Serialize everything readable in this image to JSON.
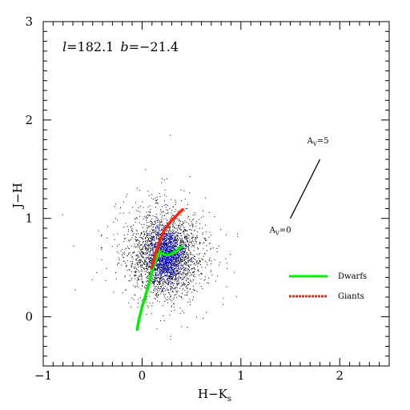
{
  "chart_data": {
    "type": "scatter",
    "title": "",
    "xlabel": "H−K",
    "xlabel_sub": "s",
    "ylabel": "J−H",
    "xlim": [
      -1.0,
      2.5
    ],
    "ylim": [
      -0.5,
      3.0
    ],
    "x_ticks": [
      "−1",
      "0",
      "1",
      "2"
    ],
    "y_ticks": [
      "0",
      "1",
      "2",
      "3"
    ],
    "x_tick_values": [
      -1,
      0,
      1,
      2
    ],
    "y_tick_values": [
      0,
      1,
      2,
      3
    ],
    "coords": {
      "l_italic": "l",
      "l_value": "=182.1",
      "b_italic": "b",
      "b_value": "=−21.4"
    },
    "reddening_vector": {
      "start": [
        1.5,
        1.0
      ],
      "end": [
        1.8,
        1.6
      ],
      "start_label": "A",
      "start_label_sub": "V",
      "start_label_rest": "=0",
      "end_label": "A",
      "end_label_sub": "V",
      "end_label_rest": "=5"
    },
    "series": [
      {
        "name": "Dwarfs",
        "color": "#00ee00",
        "style": "solid",
        "x": [
          -0.05,
          -0.03,
          0.0,
          0.03,
          0.06,
          0.09,
          0.12,
          0.15,
          0.18,
          0.2,
          0.24,
          0.28,
          0.32,
          0.36,
          0.4
        ],
        "y": [
          -0.13,
          -0.02,
          0.1,
          0.2,
          0.3,
          0.42,
          0.52,
          0.6,
          0.66,
          0.64,
          0.63,
          0.63,
          0.65,
          0.68,
          0.71
        ]
      },
      {
        "name": "Giants",
        "color": "#ff2200",
        "style": "dashed",
        "x": [
          0.1,
          0.13,
          0.16,
          0.19,
          0.22,
          0.26,
          0.3,
          0.34,
          0.38,
          0.41
        ],
        "y": [
          0.5,
          0.62,
          0.72,
          0.8,
          0.87,
          0.93,
          0.98,
          1.02,
          1.06,
          1.09
        ]
      }
    ],
    "scatter_clouds": [
      {
        "color": "#000000",
        "cx": 0.23,
        "cy": 0.63,
        "sx": 0.17,
        "sy": 0.2,
        "n": 2600
      },
      {
        "color": "#0000ff",
        "cx": 0.24,
        "cy": 0.62,
        "sx": 0.08,
        "sy": 0.13,
        "n": 900
      }
    ],
    "legend_position": "lower-right"
  }
}
